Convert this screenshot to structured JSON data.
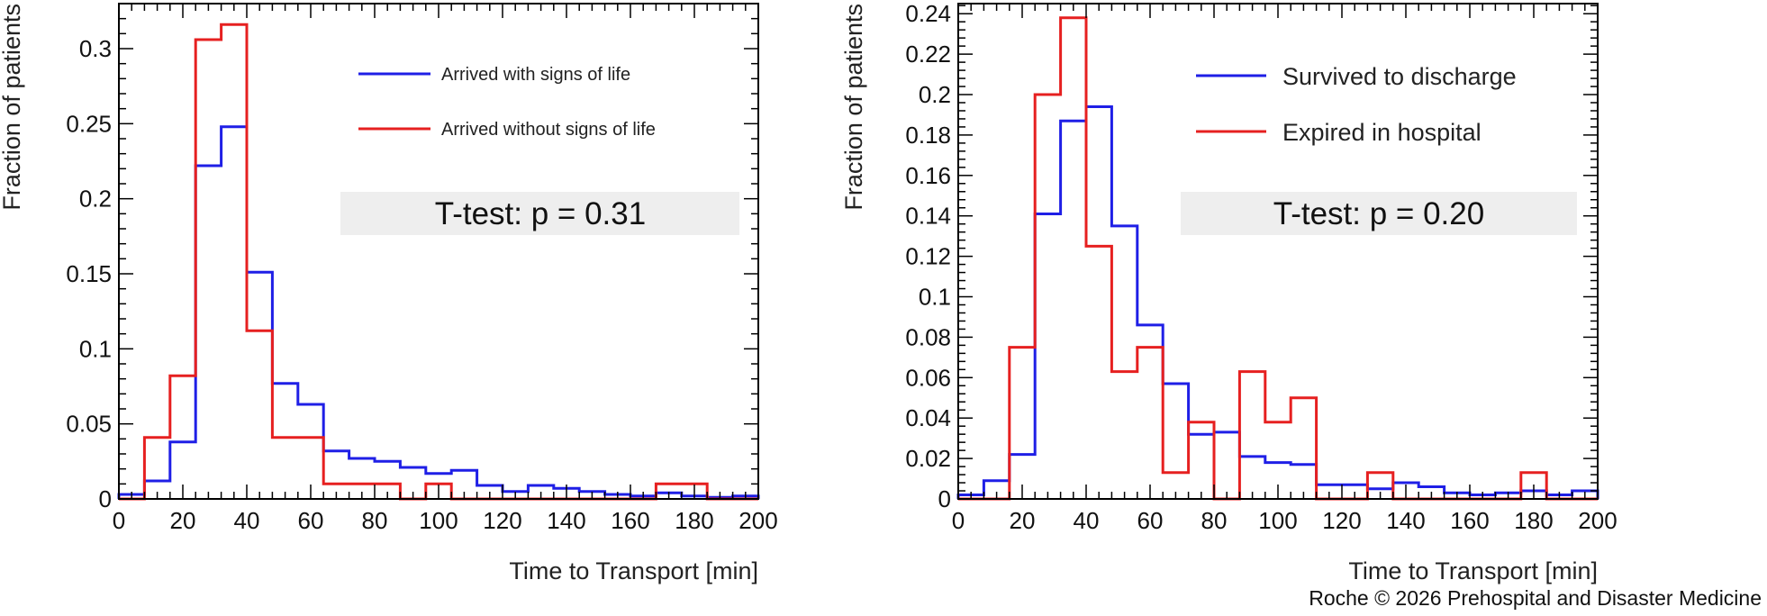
{
  "credit": "Roche © 2026 Prehospital and Disaster Medicine",
  "colors": {
    "blue": "#1f1fe6",
    "red": "#e62020",
    "ttest_box": "#eeeeee",
    "frame": "#000000"
  },
  "chart_data": [
    {
      "type": "histogram",
      "xlabel": "Time to Transport [min]",
      "ylabel": "Fraction of patients",
      "xlim": [
        0,
        200
      ],
      "ylim": [
        0,
        0.33
      ],
      "bin_width": 8,
      "x_ticks": [
        0,
        20,
        40,
        60,
        80,
        100,
        120,
        140,
        160,
        180,
        200
      ],
      "y_ticks": [
        0,
        0.05,
        0.1,
        0.15,
        0.2,
        0.25,
        0.3
      ],
      "y_tick_labels": [
        "0",
        "0.05",
        "0.1",
        "0.15",
        "0.2",
        "0.25",
        "0.3"
      ],
      "bin_edges": [
        0,
        8,
        16,
        24,
        32,
        40,
        48,
        56,
        64,
        72,
        80,
        88,
        96,
        104,
        112,
        120,
        128,
        136,
        144,
        152,
        160,
        168,
        176,
        184,
        192,
        200
      ],
      "series": [
        {
          "name": "Arrived with signs of life",
          "color": "#1f1fe6",
          "values": [
            0.003,
            0.012,
            0.038,
            0.222,
            0.248,
            0.151,
            0.077,
            0.063,
            0.032,
            0.027,
            0.025,
            0.021,
            0.017,
            0.019,
            0.009,
            0.005,
            0.009,
            0.007,
            0.005,
            0.003,
            0.002,
            0.004,
            0.002,
            0.001,
            0.002
          ]
        },
        {
          "name": "Arrived without signs of life",
          "color": "#e62020",
          "values": [
            0.0,
            0.041,
            0.082,
            0.306,
            0.316,
            0.112,
            0.041,
            0.041,
            0.01,
            0.01,
            0.01,
            0.0,
            0.01,
            0.0,
            0.0,
            0.0,
            0.0,
            0.0,
            0.0,
            0.0,
            0.0,
            0.01,
            0.01,
            0.0,
            0.0
          ]
        }
      ],
      "annotation": "T-test: p = 0.31"
    },
    {
      "type": "histogram",
      "xlabel": "Time to Transport [min]",
      "ylabel": "Fraction of patients",
      "xlim": [
        0,
        200
      ],
      "ylim": [
        0,
        0.245
      ],
      "bin_width": 8,
      "x_ticks": [
        0,
        20,
        40,
        60,
        80,
        100,
        120,
        140,
        160,
        180,
        200
      ],
      "y_ticks": [
        0,
        0.02,
        0.04,
        0.06,
        0.08,
        0.1,
        0.12,
        0.14,
        0.16,
        0.18,
        0.2,
        0.22,
        0.24
      ],
      "y_tick_labels": [
        "0",
        "0.02",
        "0.04",
        "0.06",
        "0.08",
        "0.1",
        "0.12",
        "0.14",
        "0.16",
        "0.18",
        "0.2",
        "0.22",
        "0.24"
      ],
      "bin_edges": [
        0,
        8,
        16,
        24,
        32,
        40,
        48,
        56,
        64,
        72,
        80,
        88,
        96,
        104,
        112,
        120,
        128,
        136,
        144,
        152,
        160,
        168,
        176,
        184,
        192,
        200
      ],
      "series": [
        {
          "name": "Survived to discharge",
          "color": "#1f1fe6",
          "values": [
            0.002,
            0.009,
            0.022,
            0.141,
            0.187,
            0.194,
            0.135,
            0.086,
            0.057,
            0.032,
            0.033,
            0.021,
            0.018,
            0.017,
            0.007,
            0.007,
            0.005,
            0.008,
            0.006,
            0.003,
            0.002,
            0.003,
            0.004,
            0.002,
            0.004
          ]
        },
        {
          "name": "Expired in hospital",
          "color": "#e62020",
          "values": [
            0.0,
            0.0,
            0.075,
            0.2,
            0.238,
            0.125,
            0.063,
            0.075,
            0.013,
            0.038,
            0.0,
            0.063,
            0.038,
            0.05,
            0.0,
            0.0,
            0.013,
            0.0,
            0.0,
            0.0,
            0.0,
            0.0,
            0.013,
            0.0,
            0.0
          ]
        }
      ],
      "annotation": "T-test: p = 0.20"
    }
  ]
}
